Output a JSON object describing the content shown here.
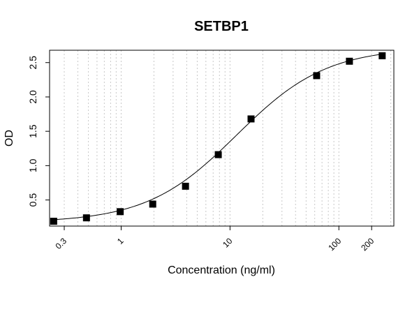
{
  "chart_data": {
    "type": "scatter",
    "title": "SETBP1",
    "xlabel": "Concentration (ng/ml)",
    "ylabel": "OD",
    "x_scale": "log",
    "xlim": [
      0.22,
      320
    ],
    "ylim": [
      0.12,
      2.68
    ],
    "x_ticks": [
      0.3,
      1,
      10,
      100,
      200
    ],
    "x_tick_labels": [
      "0.3",
      "1",
      "10",
      "100",
      "200"
    ],
    "y_ticks": [
      0.5,
      1.0,
      1.5,
      2.0,
      2.5
    ],
    "y_tick_labels": [
      "0.5",
      "1.0",
      "1.5",
      "2.0",
      "2.5"
    ],
    "grid": "vertical dotted",
    "marker": "filled square",
    "fit": "sigmoidal curve",
    "points": [
      {
        "x": 0.24,
        "y": 0.19
      },
      {
        "x": 0.48,
        "y": 0.24
      },
      {
        "x": 0.98,
        "y": 0.33
      },
      {
        "x": 1.95,
        "y": 0.44
      },
      {
        "x": 3.9,
        "y": 0.7
      },
      {
        "x": 7.8,
        "y": 1.16
      },
      {
        "x": 15.6,
        "y": 1.68
      },
      {
        "x": 62.5,
        "y": 2.31
      },
      {
        "x": 125,
        "y": 2.52
      },
      {
        "x": 250,
        "y": 2.6
      }
    ]
  }
}
